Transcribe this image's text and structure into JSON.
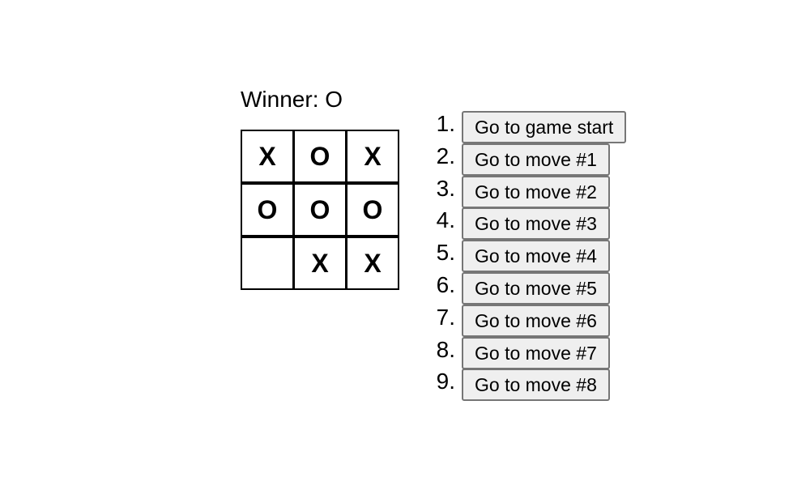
{
  "status": "Winner: O",
  "board": {
    "rows": [
      [
        "X",
        "O",
        "X"
      ],
      [
        "O",
        "O",
        "O"
      ],
      [
        "",
        "X",
        "X"
      ]
    ]
  },
  "moves": [
    {
      "number": "1.",
      "label": "Go to game start"
    },
    {
      "number": "2.",
      "label": "Go to move #1"
    },
    {
      "number": "3.",
      "label": "Go to move #2"
    },
    {
      "number": "4.",
      "label": "Go to move #3"
    },
    {
      "number": "5.",
      "label": "Go to move #4"
    },
    {
      "number": "6.",
      "label": "Go to move #5"
    },
    {
      "number": "7.",
      "label": "Go to move #6"
    },
    {
      "number": "8.",
      "label": "Go to move #7"
    },
    {
      "number": "9.",
      "label": "Go to move #8"
    }
  ]
}
